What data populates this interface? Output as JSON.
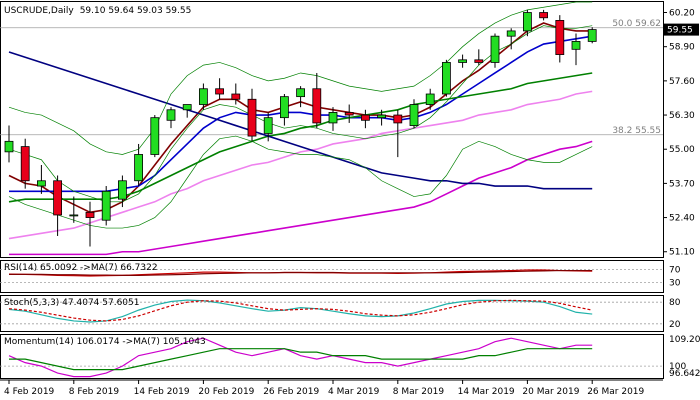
{
  "chart_data": {
    "type": "candlestick",
    "symbol": "USCRUDE",
    "timeframe": "Daily",
    "ohlc_text": "59.10 59.64 59.03 59.55",
    "last_price_label": "59.55",
    "price_axis_ticks": [
      "60.20",
      "58.90",
      "57.60",
      "56.30",
      "55.00",
      "53.70",
      "52.40",
      "51.10"
    ],
    "ylim": [
      50.9,
      60.6
    ],
    "fib_levels": [
      {
        "text": "50.0 59.62",
        "value": 59.62
      },
      {
        "text": "38.2 55.55",
        "value": 55.55
      }
    ],
    "x_tick_labels": [
      "4 Feb 2019",
      "8 Feb 2019",
      "14 Feb 2019",
      "20 Feb 2019",
      "26 Feb 2019",
      "4 Mar 2019",
      "8 Mar 2019",
      "14 Mar 2019",
      "20 Mar 2019",
      "26 Mar 2019"
    ],
    "x_tick_index": [
      0,
      4,
      8,
      12,
      16,
      20,
      24,
      28,
      32,
      36
    ],
    "candles": [
      {
        "o": 54.9,
        "h": 55.9,
        "l": 54.5,
        "c": 55.3
      },
      {
        "o": 55.1,
        "h": 55.4,
        "l": 53.5,
        "c": 53.8
      },
      {
        "o": 53.6,
        "h": 54.4,
        "l": 53.3,
        "c": 53.8
      },
      {
        "o": 53.8,
        "h": 54.0,
        "l": 51.7,
        "c": 52.5
      },
      {
        "o": 52.5,
        "h": 53.2,
        "l": 52.2,
        "c": 52.5
      },
      {
        "o": 52.6,
        "h": 53.0,
        "l": 51.3,
        "c": 52.4
      },
      {
        "o": 52.3,
        "h": 53.6,
        "l": 52.1,
        "c": 53.4
      },
      {
        "o": 53.1,
        "h": 54.0,
        "l": 52.8,
        "c": 53.8
      },
      {
        "o": 53.8,
        "h": 55.2,
        "l": 53.6,
        "c": 54.8
      },
      {
        "o": 54.8,
        "h": 56.3,
        "l": 54.7,
        "c": 56.2
      },
      {
        "o": 56.1,
        "h": 56.6,
        "l": 55.8,
        "c": 56.5
      },
      {
        "o": 56.5,
        "h": 56.7,
        "l": 56.2,
        "c": 56.7
      },
      {
        "o": 56.7,
        "h": 57.5,
        "l": 56.5,
        "c": 57.3
      },
      {
        "o": 57.3,
        "h": 57.7,
        "l": 56.9,
        "c": 57.1
      },
      {
        "o": 57.1,
        "h": 57.5,
        "l": 56.7,
        "c": 56.9
      },
      {
        "o": 56.9,
        "h": 57.3,
        "l": 55.3,
        "c": 55.5
      },
      {
        "o": 55.6,
        "h": 56.4,
        "l": 55.3,
        "c": 56.2
      },
      {
        "o": 56.2,
        "h": 57.1,
        "l": 55.9,
        "c": 57.0
      },
      {
        "o": 57.0,
        "h": 57.4,
        "l": 56.6,
        "c": 57.3
      },
      {
        "o": 57.3,
        "h": 57.9,
        "l": 55.8,
        "c": 56.0
      },
      {
        "o": 56.0,
        "h": 56.6,
        "l": 55.7,
        "c": 56.4
      },
      {
        "o": 56.4,
        "h": 56.7,
        "l": 56.0,
        "c": 56.3
      },
      {
        "o": 56.3,
        "h": 56.5,
        "l": 55.8,
        "c": 56.1
      },
      {
        "o": 56.2,
        "h": 56.5,
        "l": 55.9,
        "c": 56.3
      },
      {
        "o": 56.3,
        "h": 56.5,
        "l": 54.7,
        "c": 56.0
      },
      {
        "o": 55.9,
        "h": 56.9,
        "l": 55.8,
        "c": 56.7
      },
      {
        "o": 56.7,
        "h": 57.3,
        "l": 56.5,
        "c": 57.1
      },
      {
        "o": 57.1,
        "h": 58.4,
        "l": 57.0,
        "c": 58.3
      },
      {
        "o": 58.3,
        "h": 58.6,
        "l": 58.1,
        "c": 58.4
      },
      {
        "o": 58.4,
        "h": 58.8,
        "l": 58.2,
        "c": 58.3
      },
      {
        "o": 58.3,
        "h": 59.4,
        "l": 58.1,
        "c": 59.3
      },
      {
        "o": 59.3,
        "h": 59.6,
        "l": 58.8,
        "c": 59.5
      },
      {
        "o": 59.5,
        "h": 60.3,
        "l": 59.3,
        "c": 60.2
      },
      {
        "o": 60.2,
        "h": 60.3,
        "l": 59.9,
        "c": 60.0
      },
      {
        "o": 59.9,
        "h": 60.1,
        "l": 58.3,
        "c": 58.6
      },
      {
        "o": 58.8,
        "h": 59.4,
        "l": 58.2,
        "c": 59.1
      },
      {
        "o": 59.1,
        "h": 59.64,
        "l": 59.03,
        "c": 59.55
      }
    ],
    "overlay_series": [
      {
        "color": "#800000",
        "values": [
          54.0,
          53.7,
          53.6,
          53.2,
          52.9,
          52.6,
          52.7,
          53.0,
          53.6,
          54.4,
          55.2,
          55.9,
          56.6,
          56.9,
          56.9,
          56.5,
          56.4,
          56.6,
          56.8,
          56.6,
          56.5,
          56.4,
          56.3,
          56.3,
          56.2,
          56.3,
          56.6,
          57.1,
          57.6,
          58.0,
          58.5,
          59.0,
          59.5,
          59.8,
          59.6,
          59.5,
          59.5
        ]
      },
      {
        "color": "#0000cc",
        "values": [
          53.4,
          53.4,
          53.4,
          53.4,
          53.4,
          53.4,
          53.4,
          53.5,
          53.6,
          54.0,
          54.6,
          55.2,
          55.8,
          56.2,
          56.4,
          56.3,
          56.3,
          56.4,
          56.4,
          56.3,
          56.3,
          56.2,
          56.2,
          56.2,
          56.1,
          56.2,
          56.4,
          56.7,
          57.1,
          57.5,
          57.9,
          58.3,
          58.7,
          59.0,
          59.1,
          59.2,
          59.3
        ]
      },
      {
        "color": "#008000",
        "values": [
          53.0,
          53.1,
          53.1,
          53.1,
          53.1,
          53.1,
          53.1,
          53.2,
          53.4,
          53.7,
          54.0,
          54.3,
          54.6,
          54.9,
          55.1,
          55.3,
          55.5,
          55.6,
          55.8,
          55.9,
          56.1,
          56.2,
          56.3,
          56.4,
          56.5,
          56.7,
          56.8,
          56.9,
          57.0,
          57.1,
          57.2,
          57.3,
          57.5,
          57.6,
          57.7,
          57.8,
          57.9
        ]
      },
      {
        "color": "#ee82ee",
        "values": [
          51.6,
          51.7,
          51.8,
          51.9,
          52.0,
          52.2,
          52.4,
          52.6,
          52.8,
          53.0,
          53.3,
          53.5,
          53.8,
          54.0,
          54.2,
          54.4,
          54.5,
          54.7,
          54.9,
          55.0,
          55.2,
          55.3,
          55.4,
          55.6,
          55.7,
          55.8,
          55.9,
          56.0,
          56.1,
          56.3,
          56.4,
          56.5,
          56.7,
          56.8,
          56.9,
          57.1,
          57.2
        ]
      },
      {
        "color": "#cc00cc",
        "values": [
          51.0,
          51.0,
          51.0,
          51.0,
          51.0,
          51.0,
          51.0,
          51.1,
          51.1,
          51.2,
          51.3,
          51.4,
          51.5,
          51.6,
          51.7,
          51.8,
          51.9,
          52.0,
          52.1,
          52.2,
          52.3,
          52.4,
          52.5,
          52.6,
          52.7,
          52.8,
          53.0,
          53.3,
          53.6,
          53.9,
          54.1,
          54.3,
          54.6,
          54.8,
          55.0,
          55.1,
          55.3
        ]
      },
      {
        "color": "#000080",
        "values": [
          58.7,
          58.5,
          58.3,
          58.1,
          57.9,
          57.7,
          57.5,
          57.3,
          57.1,
          56.9,
          56.7,
          56.5,
          56.3,
          56.1,
          55.9,
          55.7,
          55.5,
          55.3,
          55.1,
          54.9,
          54.7,
          54.5,
          54.3,
          54.1,
          54.0,
          53.9,
          53.8,
          53.8,
          53.7,
          53.7,
          53.6,
          53.6,
          53.6,
          53.5,
          53.5,
          53.5,
          53.5
        ]
      },
      {
        "color": "#008000",
        "width": 0.7,
        "values": [
          55.0,
          54.8,
          54.6,
          53.8,
          53.4,
          53.2,
          53.0,
          53.0,
          53.3,
          54.0,
          55.0,
          55.8,
          56.5,
          56.7,
          56.6,
          56.3,
          56.0,
          55.8,
          55.9,
          55.8,
          55.6,
          55.5,
          55.4,
          55.5,
          55.6,
          55.8,
          56.2,
          56.8,
          57.5,
          58.2,
          58.7,
          59.0,
          59.4,
          59.7,
          59.6,
          59.6,
          59.7
        ]
      },
      {
        "color": "#008000",
        "width": 0.7,
        "values": [
          53.2,
          52.9,
          52.7,
          52.5,
          52.3,
          52.1,
          52.0,
          52.0,
          52.1,
          52.4,
          53.0,
          53.9,
          54.8,
          55.4,
          55.5,
          55.3,
          55.0,
          54.9,
          54.8,
          54.8,
          54.7,
          54.6,
          54.3,
          53.8,
          53.5,
          53.2,
          53.3,
          54.0,
          55.0,
          55.3,
          55.1,
          54.8,
          54.6,
          54.5,
          54.5,
          54.8,
          55.1
        ]
      },
      {
        "color": "#008000",
        "width": 0.7,
        "values": [
          56.6,
          56.4,
          56.3,
          56.0,
          55.7,
          55.2,
          54.9,
          54.8,
          55.0,
          55.8,
          57.1,
          57.8,
          58.2,
          58.3,
          58.1,
          57.8,
          57.6,
          57.7,
          57.9,
          57.8,
          57.6,
          57.4,
          57.3,
          57.2,
          57.3,
          57.4,
          57.8,
          58.3,
          58.9,
          59.4,
          59.8,
          60.1,
          60.3,
          60.4,
          60.5,
          60.6,
          60.6
        ]
      }
    ],
    "indicators": [
      {
        "label": "RSI(14) 65.0092 ->MA(7) 66.7322",
        "axis_labels": [
          "70",
          "30"
        ],
        "ylim": [
          0,
          100
        ],
        "hlines": [
          70,
          30
        ],
        "series": [
          {
            "color": "#cc0000",
            "values": [
              56,
              55,
              54,
              52,
              51,
              50,
              51,
              52,
              54,
              56,
              58,
              60,
              62,
              62,
              61,
              60,
              60,
              61,
              61,
              60,
              60,
              59,
              59,
              59,
              58,
              59,
              60,
              62,
              64,
              65,
              66,
              67,
              69,
              69,
              67,
              66,
              65
            ]
          },
          {
            "color": "#800000",
            "values": [
              55,
              55,
              55,
              54,
              54,
              53,
              53,
              52,
              52,
              53,
              54,
              55,
              57,
              58,
              59,
              60,
              60,
              61,
              61,
              61,
              61,
              60,
              60,
              60,
              60,
              60,
              60,
              60,
              61,
              62,
              63,
              64,
              65,
              66,
              67,
              67,
              67
            ]
          }
        ]
      },
      {
        "label": "Stoch(5,3,3) 47.4074 57.6051",
        "axis_labels": [
          "80",
          "20"
        ],
        "ylim": [
          0,
          100
        ],
        "hlines": [
          80,
          20
        ],
        "series": [
          {
            "color": "#20b2aa",
            "values": [
              60,
              55,
              45,
              35,
              28,
              25,
              28,
              40,
              58,
              72,
              82,
              86,
              84,
              78,
              70,
              62,
              55,
              58,
              65,
              62,
              55,
              48,
              42,
              40,
              42,
              50,
              62,
              75,
              82,
              85,
              85,
              84,
              83,
              80,
              68,
              52,
              47
            ]
          },
          {
            "color": "#cc0000",
            "dash": "3,2",
            "values": [
              62,
              58,
              52,
              44,
              36,
              30,
              28,
              32,
              42,
              56,
              70,
              80,
              84,
              83,
              78,
              70,
              62,
              58,
              60,
              62,
              60,
              55,
              48,
              44,
              42,
              45,
              52,
              62,
              73,
              80,
              84,
              85,
              84,
              83,
              77,
              67,
              58
            ]
          }
        ]
      },
      {
        "label": "Momentum(14) 106.0174 ->MA(7) 105.1043",
        "axis_labels": [
          "109.2065",
          "100",
          "96.6429"
        ],
        "ylim": [
          96.6,
          109.2
        ],
        "hlines": [
          100
        ],
        "series": [
          {
            "color": "#cc00cc",
            "values": [
              103,
              101,
              100,
              98,
              97,
              97,
              98,
              100,
              103,
              104,
              105,
              107,
              108,
              106,
              104,
              103,
              104,
              105,
              103,
              102,
              103,
              102,
              101,
              101,
              100,
              101,
              102,
              103,
              104,
              105,
              107,
              108,
              107,
              106,
              105,
              106,
              106
            ]
          },
          {
            "color": "#008000",
            "values": [
              102,
              102,
              101,
              100,
              99,
              99,
              99,
              99,
              100,
              101,
              102,
              103,
              104,
              105,
              105,
              105,
              105,
              105,
              104,
              104,
              103,
              103,
              103,
              102,
              102,
              102,
              102,
              102,
              102,
              103,
              103,
              104,
              105,
              105,
              105,
              105,
              105
            ]
          }
        ]
      }
    ]
  }
}
